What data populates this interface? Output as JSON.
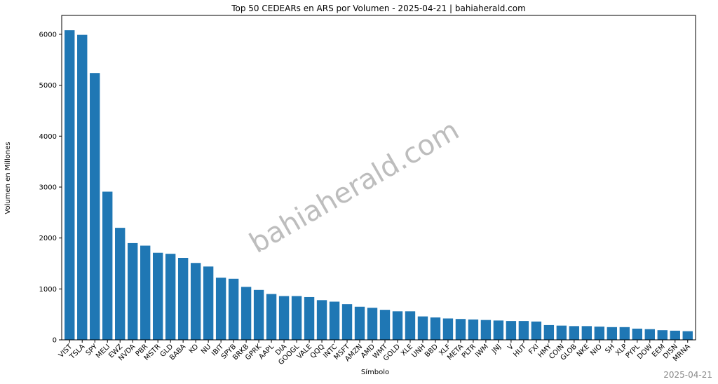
{
  "chart_data": {
    "type": "bar",
    "title": "Top 50 CEDEARs en ARS por Volumen - 2025-04-21 | bahiaherald.com",
    "xlabel": "Símbolo",
    "ylabel": "Volumen en Millones",
    "watermark": "bahiaherald.com",
    "footer": "2025-04-21",
    "color": "#1f77b4",
    "categories": [
      "VIST",
      "TSLA",
      "SPY",
      "MELI",
      "EWZ",
      "NVDA",
      "PBR",
      "MSTR",
      "GLD",
      "BABA",
      "KO",
      "NU",
      "IBIT",
      "SPYB",
      "BRKB",
      "GPRK",
      "AAPL",
      "DIA",
      "GOOGL",
      "VALE",
      "QQQ",
      "INTC",
      "MSFT",
      "AMZN",
      "AMD",
      "WMT",
      "GOLD",
      "XLE",
      "UNH",
      "BBD",
      "XLF",
      "META",
      "PLTR",
      "IWM",
      "JNJ",
      "V",
      "HUT",
      "FXI",
      "HMY",
      "COIN",
      "GLOB",
      "NKE",
      "NIO",
      "SH",
      "XLP",
      "PYPL",
      "DOW",
      "EEM",
      "DISN",
      "MRNA"
    ],
    "values": [
      6080,
      5990,
      5240,
      2910,
      2200,
      1900,
      1850,
      1710,
      1690,
      1610,
      1510,
      1440,
      1220,
      1200,
      1040,
      980,
      900,
      860,
      860,
      840,
      780,
      750,
      700,
      650,
      630,
      590,
      560,
      560,
      460,
      440,
      420,
      410,
      400,
      390,
      380,
      370,
      370,
      360,
      290,
      280,
      270,
      270,
      260,
      250,
      250,
      220,
      210,
      190,
      180,
      170
    ],
    "ylim": [
      0,
      6371
    ],
    "yticks": [
      0,
      1000,
      2000,
      3000,
      4000,
      5000,
      6000
    ],
    "grid": false
  }
}
